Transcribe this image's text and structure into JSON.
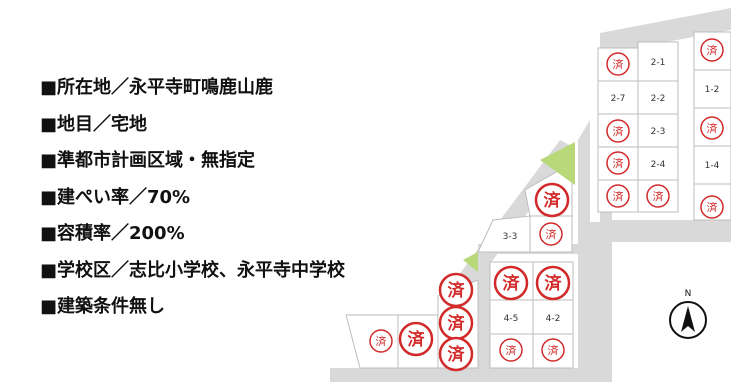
{
  "info": [
    "■所在地／永平寺町鳴鹿山鹿",
    "■地目／宅地",
    "■準都市計画区域・無指定",
    "■建ぺい率／70%",
    "■容積率／200%",
    "■学校区／志比小学校、永平寺中学校",
    "■建築条件無し"
  ],
  "sold_mark": "済",
  "lot_labels": {
    "l21": "2-1",
    "l27": "2-7",
    "l22": "2-2",
    "l23": "2-3",
    "l24": "2-4",
    "l12": "1-2",
    "l14": "1-4",
    "l33": "3-3",
    "l45": "4-5",
    "l42": "4-2"
  },
  "compass": {
    "label": "N"
  },
  "colors": {
    "road": "#d8d8d8",
    "lot_border": "#bdbdbd",
    "green": "#b8d87a",
    "stamp": "#d22a2a"
  }
}
